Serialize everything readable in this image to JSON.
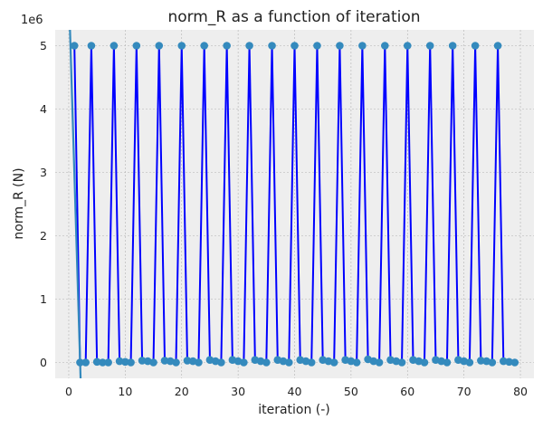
{
  "chart_data": {
    "type": "line",
    "title": "norm_R as a function of iteration",
    "xlabel": "iteration (-)",
    "ylabel": "norm_R (N)",
    "y_scale_label": "1e6",
    "xlim": [
      -2.4,
      82.4
    ],
    "ylim": [
      -250000,
      5250000
    ],
    "x_ticks": [
      0,
      10,
      20,
      30,
      40,
      50,
      60,
      70,
      80
    ],
    "x_tick_labels": [
      "0",
      "10",
      "20",
      "30",
      "40",
      "50",
      "60",
      "70",
      "80"
    ],
    "y_ticks": [
      0,
      1000000,
      2000000,
      3000000,
      4000000,
      5000000
    ],
    "y_tick_labels": [
      "0",
      "1",
      "2",
      "3",
      "4",
      "5"
    ],
    "grid": true,
    "background": "#eeeeee",
    "series": [
      {
        "color": "#0000ff",
        "marker_color": "#348abd",
        "marker": "circle",
        "x": [
          1,
          2,
          3,
          4,
          5,
          6,
          7,
          8,
          9,
          10,
          11,
          12,
          13,
          14,
          15,
          16,
          17,
          18,
          19,
          20,
          21,
          22,
          23,
          24,
          25,
          26,
          27,
          28,
          29,
          30,
          31,
          32,
          33,
          34,
          35,
          36,
          37,
          38,
          39,
          40,
          41,
          42,
          43,
          44,
          45,
          46,
          47,
          48,
          49,
          50,
          51,
          52,
          53,
          54,
          55,
          56,
          57,
          58,
          59,
          60,
          61,
          62,
          63,
          64,
          65,
          66,
          67,
          68,
          69,
          70,
          71,
          72,
          73,
          74,
          75,
          76,
          77,
          78,
          79
        ],
        "y": [
          5000000,
          0,
          0,
          5000000,
          10000,
          0,
          0,
          5000000,
          20000,
          10000,
          0,
          5000000,
          30000,
          20000,
          0,
          5000000,
          30000,
          20000,
          0,
          5000000,
          30000,
          20000,
          0,
          5000000,
          40000,
          20000,
          0,
          5000000,
          40000,
          20000,
          0,
          5000000,
          40000,
          20000,
          0,
          5000000,
          40000,
          20000,
          0,
          5000000,
          40000,
          20000,
          0,
          5000000,
          40000,
          20000,
          0,
          5000000,
          40000,
          20000,
          0,
          5000000,
          50000,
          20000,
          0,
          5000000,
          40000,
          20000,
          0,
          5000000,
          40000,
          20000,
          0,
          5000000,
          40000,
          20000,
          0,
          5000000,
          40000,
          20000,
          0,
          5000000,
          30000,
          20000,
          0,
          5000000,
          20000,
          10000,
          0
        ]
      },
      {
        "color": "#348abd",
        "x": [
          0.0,
          2.1
        ],
        "y": [
          5900000,
          -260000
        ]
      }
    ]
  }
}
